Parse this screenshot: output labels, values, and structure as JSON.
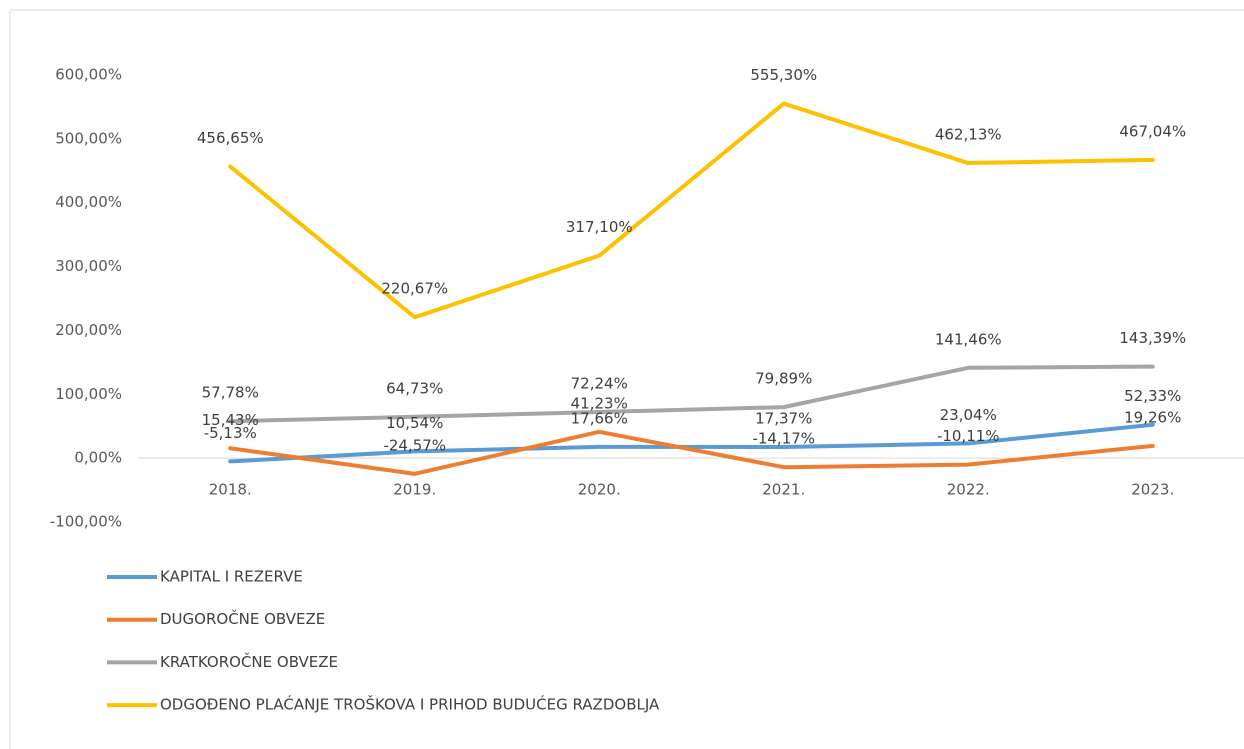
{
  "chart_data": {
    "type": "line",
    "categories": [
      "2018.",
      "2019.",
      "2020.",
      "2021.",
      "2022.",
      "2023."
    ],
    "series": [
      {
        "name": "KAPITAL I REZERVE",
        "color": "#5b9bd5",
        "values": [
          -5.13,
          10.54,
          17.66,
          17.37,
          23.04,
          52.33
        ],
        "value_labels": [
          "-5,13%",
          "10,54%",
          "17,66%",
          "17,37%",
          "23,04%",
          "52,33%"
        ]
      },
      {
        "name": "DUGOROČNE OBVEZE",
        "color": "#ed7d31",
        "values": [
          15.43,
          -24.57,
          41.23,
          -14.17,
          -10.11,
          19.26
        ],
        "value_labels": [
          "15,43%",
          "-24,57%",
          "41,23%",
          "-14,17%",
          "-10,11%",
          "19,26%"
        ]
      },
      {
        "name": "KRATKOROČNE OBVEZE",
        "color": "#a5a5a5",
        "values": [
          57.78,
          64.73,
          72.24,
          79.89,
          141.46,
          143.39
        ],
        "value_labels": [
          "57,78%",
          "64,73%",
          "72,24%",
          "79,89%",
          "141,46%",
          "143,39%"
        ]
      },
      {
        "name": "ODGOĐENO PLAĆANJE TROŠKOVA I PRIHOD BUDUĆEG RAZDOBLJA",
        "color": "#ffc000",
        "values": [
          456.65,
          220.67,
          317.1,
          555.3,
          462.13,
          467.04
        ],
        "value_labels": [
          "456,65%",
          "220,67%",
          "317,10%",
          "555,30%",
          "462,13%",
          "467,04%"
        ]
      }
    ],
    "ylim": [
      -100,
      600
    ],
    "yticks": [
      {
        "value": -100,
        "label": "-100,00%"
      },
      {
        "value": 0,
        "label": "0,00%"
      },
      {
        "value": 100,
        "label": "100,00%"
      },
      {
        "value": 200,
        "label": "200,00%"
      },
      {
        "value": 300,
        "label": "300,00%"
      },
      {
        "value": 400,
        "label": "400,00%"
      },
      {
        "value": 500,
        "label": "500,00%"
      },
      {
        "value": 600,
        "label": "600,00%"
      }
    ],
    "grid": false,
    "legend": "bottom"
  }
}
